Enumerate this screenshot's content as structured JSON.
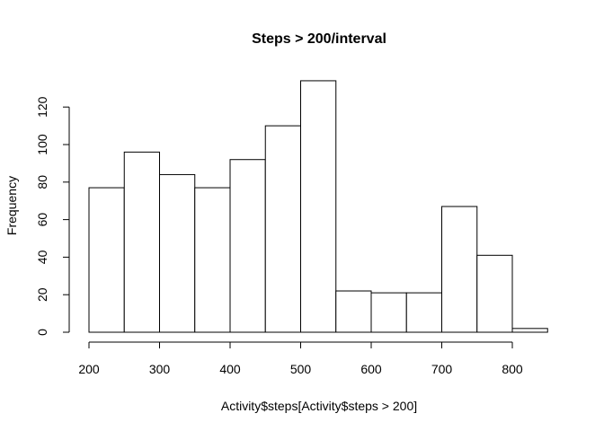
{
  "chart_data": {
    "type": "bar",
    "title": "Steps > 200/interval",
    "xlabel": "Activity$steps[Activity$steps > 200]",
    "ylabel": "Frequency",
    "bin_edges": [
      200,
      250,
      300,
      350,
      400,
      450,
      500,
      550,
      600,
      650,
      700,
      750,
      800,
      850
    ],
    "values": [
      77,
      96,
      84,
      77,
      92,
      110,
      134,
      22,
      21,
      21,
      67,
      41,
      2
    ],
    "xlim": [
      200,
      850
    ],
    "ylim": [
      0,
      134
    ],
    "x_ticks": [
      200,
      300,
      400,
      500,
      600,
      700,
      800
    ],
    "y_ticks": [
      0,
      20,
      40,
      60,
      80,
      100,
      120
    ],
    "grid": false,
    "bar_fill": "#ffffff",
    "bar_stroke": "#000000"
  }
}
